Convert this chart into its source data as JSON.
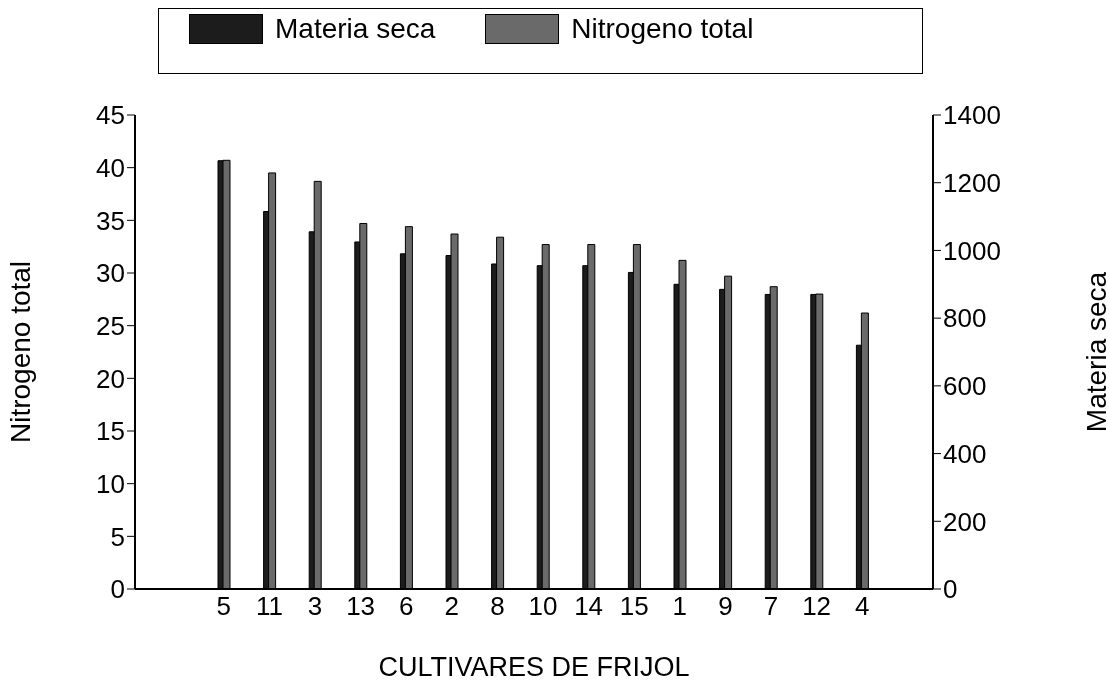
{
  "chart_data": {
    "type": "bar",
    "xlabel": "CULTIVARES DE FRIJOL",
    "ylabel": "Nitrogeno total",
    "y2label": "Materia seca",
    "categories": [
      "5",
      "11",
      "3",
      "13",
      "6",
      "2",
      "8",
      "10",
      "14",
      "15",
      "1",
      "9",
      "7",
      "12",
      "4"
    ],
    "series": [
      {
        "name": "Materia seca",
        "color": "#1c1c1c",
        "axis": "y2",
        "values": [
          1265,
          1115,
          1055,
          1025,
          990,
          985,
          960,
          955,
          955,
          935,
          900,
          885,
          870,
          870,
          720
        ]
      },
      {
        "name": "Nitrogeno total",
        "color": "#6a6a6a",
        "values": [
          40.7,
          39.5,
          38.7,
          34.7,
          34.4,
          33.7,
          33.4,
          32.7,
          32.7,
          32.7,
          31.2,
          29.7,
          28.7,
          28.0,
          26.2
        ]
      }
    ],
    "ylim": [
      0,
      45
    ],
    "yticks": [
      0,
      5,
      10,
      15,
      20,
      25,
      30,
      35,
      40,
      45
    ],
    "y2lim": [
      0,
      1400
    ],
    "y2ticks": [
      0,
      200,
      400,
      600,
      800,
      1000,
      1200,
      1400
    ],
    "grid": false,
    "legend": "top"
  }
}
